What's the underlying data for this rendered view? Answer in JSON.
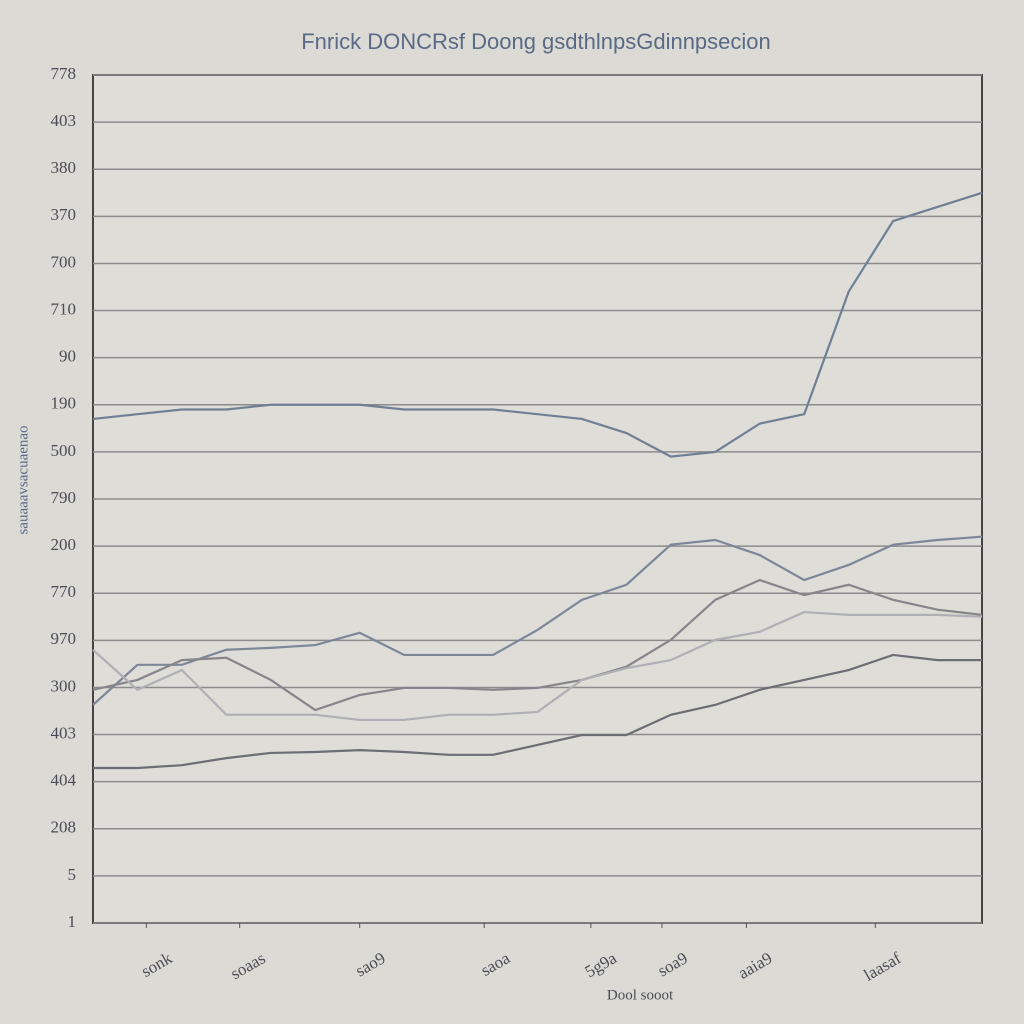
{
  "chart_data": {
    "type": "line",
    "title": "Fnrick DONCRsf Doong gsdthlnpsGdinnpsecion",
    "x_label": "Dool sooot",
    "y_label": "sauaaavsacuaenao",
    "x": [
      0,
      1,
      2,
      3,
      4,
      5,
      6,
      7,
      8,
      9,
      10,
      11,
      12,
      13,
      14,
      15,
      16,
      17,
      18,
      19,
      20
    ],
    "xlim": [
      0,
      20
    ],
    "xticks": [
      {
        "value": 1.2,
        "label": "sonk"
      },
      {
        "value": 3.3,
        "label": "soaas"
      },
      {
        "value": 6.0,
        "label": "sao9"
      },
      {
        "value": 8.8,
        "label": "saoa"
      },
      {
        "value": 11.2,
        "label": "5g9a"
      },
      {
        "value": 12.8,
        "label": "soa9"
      },
      {
        "value": 14.7,
        "label": "aaia9"
      },
      {
        "value": 17.6,
        "label": "laasaf"
      }
    ],
    "ylim": [
      0,
      18
    ],
    "yticks": [
      {
        "value": 0,
        "label": "1"
      },
      {
        "value": 1,
        "label": "5"
      },
      {
        "value": 2,
        "label": "208"
      },
      {
        "value": 3,
        "label": "404"
      },
      {
        "value": 4,
        "label": "403"
      },
      {
        "value": 5,
        "label": "300"
      },
      {
        "value": 6,
        "label": "970"
      },
      {
        "value": 7,
        "label": "770"
      },
      {
        "value": 8,
        "label": "200"
      },
      {
        "value": 9,
        "label": "790"
      },
      {
        "value": 10,
        "label": "500"
      },
      {
        "value": 11,
        "label": "190"
      },
      {
        "value": 12,
        "label": "90"
      },
      {
        "value": 13,
        "label": "710"
      },
      {
        "value": 14,
        "label": "700"
      },
      {
        "value": 15,
        "label": "370"
      },
      {
        "value": 16,
        "label": "380"
      },
      {
        "value": 17,
        "label": "403"
      },
      {
        "value": 18,
        "label": "778"
      }
    ],
    "grid": true,
    "series": [
      {
        "color": "#6f7f96",
        "values": [
          10.7,
          10.8,
          10.9,
          10.9,
          11.0,
          11.0,
          11.0,
          10.9,
          10.9,
          10.9,
          10.8,
          10.7,
          10.4,
          9.9,
          10.0,
          10.6,
          10.8,
          13.4,
          14.9,
          15.2,
          15.5
        ]
      },
      {
        "color": "#7d8799",
        "values": [
          4.63,
          5.48,
          5.48,
          5.8,
          5.84,
          5.9,
          6.16,
          5.69,
          5.69,
          5.69,
          6.22,
          6.86,
          7.18,
          8.03,
          8.13,
          7.81,
          7.28,
          7.6,
          8.03,
          8.13,
          8.2
        ]
      },
      {
        "color": "#86868a",
        "values": [
          4.95,
          5.16,
          5.58,
          5.63,
          5.16,
          4.52,
          4.84,
          4.99,
          4.99,
          4.95,
          4.99,
          5.16,
          5.44,
          6.01,
          6.86,
          7.28,
          6.96,
          7.18,
          6.86,
          6.65,
          6.54
        ]
      },
      {
        "color": "#6b6e73",
        "values": [
          3.29,
          3.29,
          3.35,
          3.5,
          3.61,
          3.63,
          3.67,
          3.63,
          3.57,
          3.57,
          3.78,
          3.99,
          3.99,
          4.42,
          4.63,
          4.95,
          5.16,
          5.37,
          5.69,
          5.58,
          5.58
        ]
      },
      {
        "color": "#aeb0b3",
        "values": [
          5.8,
          4.95,
          5.37,
          4.42,
          4.42,
          4.42,
          4.31,
          4.31,
          4.42,
          4.42,
          4.48,
          5.16,
          5.41,
          5.58,
          6.01,
          6.18,
          6.6,
          6.54,
          6.54,
          6.54,
          6.5
        ]
      }
    ]
  }
}
